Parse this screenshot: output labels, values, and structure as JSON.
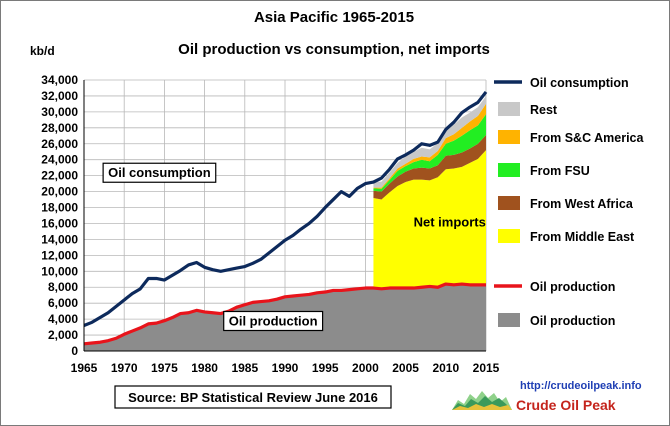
{
  "page": {
    "source_note": "Source: BP Statistical Review  June 2016",
    "link": "http://crudeoilpeak.info",
    "brand": "Crude Oil Peak"
  },
  "chart_data": {
    "type": "area",
    "title": "Asia Pacific 1965-2015",
    "subtitle": "Oil production vs consumption, net imports",
    "ylabel": "kb/d",
    "xlabel": "",
    "xlim": [
      1965,
      2015
    ],
    "ylim": [
      0,
      34000
    ],
    "grid": true,
    "legend_placement": "right",
    "x_ticks": [
      "1965",
      "1970",
      "1975",
      "1980",
      "1985",
      "1990",
      "1995",
      "2000",
      "2005",
      "2010",
      "2015"
    ],
    "y_ticks": [
      "0",
      "2,000",
      "4,000",
      "6,000",
      "8,000",
      "10,000",
      "12,000",
      "14,000",
      "16,000",
      "18,000",
      "20,000",
      "22,000",
      "24,000",
      "26,000",
      "28,000",
      "30,000",
      "32,000",
      "34,000"
    ],
    "years": [
      1965,
      1966,
      1967,
      1968,
      1969,
      1970,
      1971,
      1972,
      1973,
      1974,
      1975,
      1976,
      1977,
      1978,
      1979,
      1980,
      1981,
      1982,
      1983,
      1984,
      1985,
      1986,
      1987,
      1988,
      1989,
      1990,
      1991,
      1992,
      1993,
      1994,
      1995,
      1996,
      1997,
      1998,
      1999,
      2000,
      2001,
      2002,
      2003,
      2004,
      2005,
      2006,
      2007,
      2008,
      2009,
      2010,
      2011,
      2012,
      2013,
      2014,
      2015
    ],
    "series": [
      {
        "name": "Oil consumption",
        "kind": "line",
        "color": "#0d2a5c",
        "values": [
          3200,
          3600,
          4200,
          4800,
          5600,
          6400,
          7200,
          7800,
          9100,
          9100,
          8900,
          9500,
          10100,
          10800,
          11100,
          10500,
          10200,
          10000,
          10200,
          10400,
          10600,
          11000,
          11500,
          12300,
          13100,
          13900,
          14500,
          15300,
          16000,
          16900,
          18000,
          19000,
          20000,
          19400,
          20400,
          21000,
          21200,
          21700,
          22800,
          24100,
          24600,
          25200,
          26000,
          25800,
          26200,
          27800,
          28700,
          29900,
          30600,
          31200,
          32500
        ]
      },
      {
        "name": "Oil production",
        "kind": "line",
        "color": "#e8141b",
        "values": [
          900,
          1000,
          1100,
          1300,
          1600,
          2100,
          2500,
          2900,
          3400,
          3500,
          3800,
          4200,
          4700,
          4800,
          5100,
          4900,
          4800,
          4700,
          5000,
          5500,
          5800,
          6100,
          6200,
          6300,
          6500,
          6800,
          6900,
          7000,
          7100,
          7300,
          7400,
          7600,
          7600,
          7700,
          7800,
          7900,
          7900,
          7800,
          7900,
          7900,
          7900,
          7900,
          8000,
          8100,
          8000,
          8400,
          8300,
          8400,
          8300,
          8300,
          8300
        ]
      },
      {
        "name": "Oil production",
        "kind": "area",
        "color": "#8c8c8c",
        "values": [
          900,
          1000,
          1100,
          1300,
          1600,
          2100,
          2500,
          2900,
          3400,
          3500,
          3800,
          4200,
          4700,
          4800,
          5100,
          4900,
          4800,
          4700,
          5000,
          5500,
          5800,
          6100,
          6200,
          6300,
          6500,
          6800,
          6900,
          7000,
          7100,
          7300,
          7400,
          7600,
          7600,
          7700,
          7800,
          7900,
          7900,
          7800,
          7900,
          7900,
          7900,
          7900,
          8000,
          8100,
          8000,
          8400,
          8300,
          8400,
          8300,
          8300,
          8300
        ]
      }
    ],
    "net_imports": {
      "years": [
        2001,
        2002,
        2003,
        2004,
        2005,
        2006,
        2007,
        2008,
        2009,
        2010,
        2011,
        2012,
        2013,
        2014,
        2015
      ],
      "stack": [
        {
          "name": "From Middle East",
          "color": "#ffff00",
          "values": [
            11300,
            11200,
            12000,
            12800,
            13300,
            13600,
            13500,
            13300,
            13800,
            14400,
            14600,
            14700,
            15300,
            15800,
            16900
          ]
        },
        {
          "name": "From West Africa",
          "color": "#a0521e",
          "values": [
            900,
            1000,
            1100,
            1200,
            1300,
            1400,
            1500,
            1500,
            1500,
            1700,
            1700,
            1800,
            1800,
            1900,
            1900
          ]
        },
        {
          "name": "From FSU",
          "color": "#22ee22",
          "values": [
            300,
            350,
            450,
            700,
            700,
            800,
            1000,
            900,
            1300,
            1500,
            1800,
            2100,
            2300,
            2300,
            2600
          ]
        },
        {
          "name": "From S&C America",
          "color": "#ffb300",
          "values": [
            100,
            150,
            200,
            300,
            300,
            400,
            400,
            500,
            500,
            700,
            800,
            1000,
            1100,
            1200,
            1300
          ]
        },
        {
          "name": "Rest",
          "color": "#c8c8c8",
          "values": [
            700,
            750,
            750,
            700,
            900,
            900,
            1100,
            1000,
            1000,
            1300,
            1200,
            1300,
            1100,
            1100,
            1000
          ]
        }
      ]
    },
    "legend": [
      {
        "label": "Oil consumption",
        "kind": "line",
        "color": "#0d2a5c"
      },
      {
        "label": "Rest",
        "kind": "box",
        "color": "#c8c8c8"
      },
      {
        "label": "From S&C America",
        "kind": "box",
        "color": "#ffb300"
      },
      {
        "label": "From FSU",
        "kind": "box",
        "color": "#22ee22"
      },
      {
        "label": "From West Africa",
        "kind": "box",
        "color": "#a0521e"
      },
      {
        "label": "From Middle East",
        "kind": "box",
        "color": "#ffff00"
      },
      {
        "label": "Oil production",
        "kind": "line",
        "color": "#e8141b"
      },
      {
        "label": "Oil production",
        "kind": "box",
        "color": "#8c8c8c"
      }
    ],
    "annotations": [
      {
        "text": "Oil consumption",
        "x": 1968,
        "y": 21800,
        "boxed": true
      },
      {
        "text": "Net imports",
        "x": 2006,
        "y": 15600,
        "boxed": false
      },
      {
        "text": "Oil production",
        "x": 1983,
        "y": 3200,
        "boxed": true
      }
    ]
  }
}
